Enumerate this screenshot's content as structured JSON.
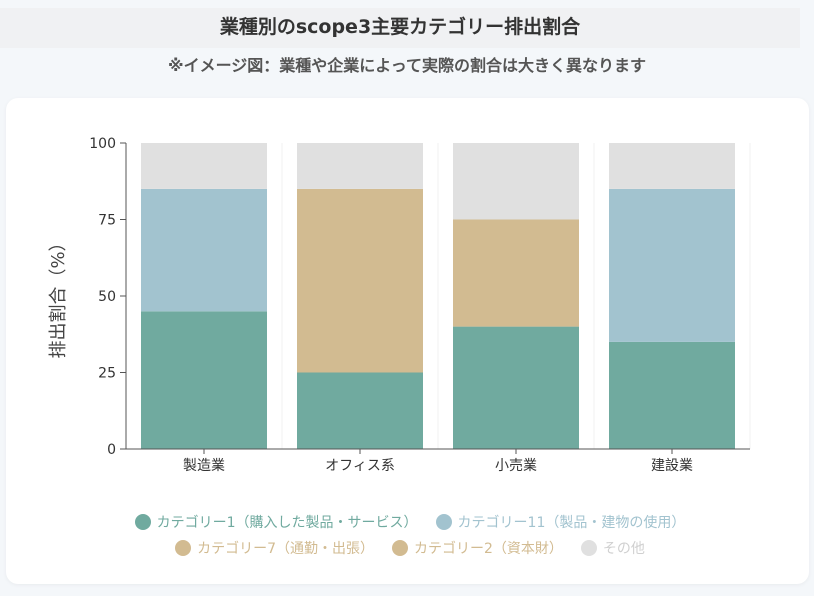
{
  "header": {
    "title": "業種別のscope3主要カテゴリー排出割合",
    "subtitle": "※イメージ図：業種や企業によって実際の割合は大きく異なります"
  },
  "chart_data": {
    "type": "bar",
    "stacked": true,
    "categories": [
      "製造業",
      "オフィス系",
      "小売業",
      "建設業"
    ],
    "ylabel": "排出割合（%）",
    "ylim": [
      0,
      100
    ],
    "yticks": [
      0,
      25,
      50,
      75,
      100
    ],
    "legend_position": "bottom",
    "series": [
      {
        "name": "カテゴリー1（購入した製品・サービス）",
        "values": [
          45,
          25,
          40,
          35
        ],
        "color": "#70aa9f"
      },
      {
        "name": "カテゴリー11（製品・建物の使用）",
        "values": [
          40,
          0,
          0,
          50
        ],
        "color": "#a2c3cf"
      },
      {
        "name": "カテゴリー7（通勤・出張）",
        "values": [
          0,
          60,
          0,
          0
        ],
        "color": "#d2bb91"
      },
      {
        "name": "カテゴリー2（資本財）",
        "values": [
          0,
          0,
          35,
          0
        ],
        "color": "#d2bb91"
      },
      {
        "name": "その他",
        "values": [
          15,
          15,
          25,
          15
        ],
        "color": "#e0e0e0"
      }
    ]
  }
}
